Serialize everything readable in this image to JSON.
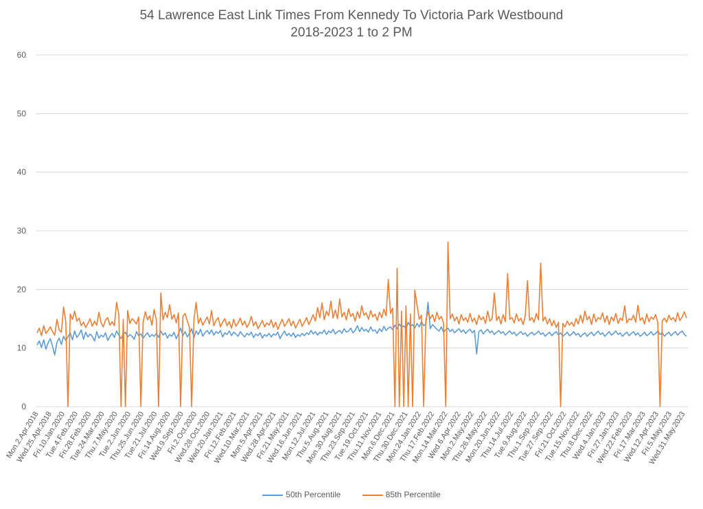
{
  "chart_data": {
    "type": "line",
    "title": "54 Lawrence East Link Times From Kennedy To Victoria Park Westbound",
    "subtitle": "2018-2023 1 to 2 PM",
    "ylim": [
      0,
      60
    ],
    "yticks": [
      0,
      10,
      20,
      30,
      40,
      50,
      60
    ],
    "grid": true,
    "legend_position": "bottom",
    "x_tick_labels": [
      "Mon.2.Apr.2018",
      "Wed.25.Apr.2018",
      "Fri.10.Jan.2020",
      "Tue.4.Feb.2020",
      "Fri.28.Feb.2020",
      "Tue.24.Mar.2020",
      "Thu.7.May.2020",
      "Tue.2.Jun.2020",
      "Thu.25.Jun.2020",
      "Tue.21.Jul.2020",
      "Fri.14.Aug.2020",
      "Wed.9.Sep.2020",
      "Fri.2.Oct.2020",
      "Wed.28.Oct.2020",
      "Wed.20.Jan.2021",
      "Fri.12.Feb.2021",
      "Wed.10.Mar.2021",
      "Mon.5.Apr.2021",
      "Wed.28.Apr.2021",
      "Fri.21.May.2021",
      "Wed.16.Jun.2021",
      "Mon.12.Jul.2021",
      "Thu.5.Aug.2021",
      "Mon.30.Aug.2021",
      "Thu.23.Sep.2021",
      "Tue.19.Oct.2021",
      "Thu.11.Nov.2021",
      "Mon.6.Dec.2021",
      "Thu.30.Dec.2021",
      "Mon.24.Jan.2022",
      "Thu.17.Feb.2022",
      "Mon.14.Mar.2022",
      "Wed.6.Apr.2022",
      "Mon.2.May.2022",
      "Thu.26.May.2022",
      "Mon.20.Jun.2022",
      "Thu.14.Jul.2022",
      "Tue.9.Aug.2022",
      "Thu.1.Sep.2022",
      "Tue.27.Sep.2022",
      "Fri.21.Oct.2022",
      "Tue.15.Nov.2022",
      "Thu.8.Dec.2022",
      "Wed.4.Jan.2023",
      "Fri.27.Jan.2023",
      "Wed.22.Feb.2023",
      "Fri.17.Mar.2023",
      "Wed.12.Apr.2023",
      "Fri.5.May.2023",
      "Wed.31.May.2023"
    ],
    "series": [
      {
        "name": "50th Percentile",
        "color": "#5b9bd5",
        "values": [
          10.5,
          11.2,
          10.1,
          11.4,
          9.8,
          10.9,
          11.6,
          10.3,
          8.8,
          11.0,
          11.7,
          10.6,
          12.0,
          11.3,
          11.9,
          12.6,
          11.4,
          12.9,
          11.8,
          12.3,
          13.1,
          11.5,
          12.7,
          11.9,
          12.4,
          12.0,
          11.2,
          12.8,
          11.7,
          12.2,
          11.9,
          12.6,
          11.3,
          12.0,
          12.5,
          11.8,
          12.9,
          12.2,
          11.6,
          12.4,
          12.7,
          11.9,
          12.3,
          12.0,
          11.5,
          12.8,
          12.1,
          12.4,
          11.7,
          12.2,
          12.6,
          11.9,
          12.3,
          12.0,
          12.5,
          11.8,
          12.9,
          12.2,
          12.6,
          11.7,
          12.3,
          12.0,
          12.7,
          11.6,
          12.4,
          13.4,
          12.1,
          12.8,
          11.9,
          12.5,
          13.3,
          11.8,
          12.9,
          12.3,
          13.2,
          12.0,
          12.6,
          13.0,
          12.4,
          13.1,
          12.2,
          12.8,
          12.5,
          13.0,
          11.9,
          12.6,
          12.3,
          12.9,
          12.1,
          12.7,
          12.4,
          12.0,
          12.8,
          12.3,
          11.9,
          12.5,
          12.2,
          12.7,
          11.8,
          12.4,
          12.1,
          12.6,
          11.7,
          12.3,
          12.0,
          12.5,
          11.9,
          12.4,
          12.2,
          12.7,
          11.6,
          12.3,
          12.9,
          12.1,
          12.5,
          12.0,
          12.6,
          11.8,
          12.3,
          12.0,
          12.5,
          12.1,
          12.6,
          12.3,
          13.0,
          12.4,
          12.8,
          12.2,
          12.7,
          12.5,
          13.1,
          12.3,
          12.9,
          12.6,
          13.2,
          12.4,
          12.8,
          13.0,
          12.5,
          13.3,
          12.7,
          12.9,
          13.4,
          12.6,
          13.0,
          13.8,
          12.8,
          13.5,
          12.9,
          13.2,
          12.7,
          13.6,
          12.9,
          13.1,
          12.5,
          13.3,
          12.8,
          13.7,
          13.0,
          13.4,
          13.6,
          13.1,
          13.9,
          13.3,
          14.1,
          13.5,
          13.8,
          13.2,
          14.4,
          13.7,
          14.0,
          13.4,
          14.2,
          13.6,
          14.5,
          13.8,
          14.1,
          17.8,
          13.3,
          14.0,
          13.6,
          13.2,
          12.9,
          13.6,
          12.7,
          13.1,
          13.4,
          12.8,
          13.2,
          12.6,
          13.0,
          13.3,
          12.7,
          13.1,
          12.5,
          12.9,
          13.2,
          12.6,
          13.0,
          9.0,
          12.8,
          13.1,
          12.4,
          12.9,
          13.2,
          12.6,
          12.9,
          12.3,
          12.7,
          13.0,
          12.5,
          12.8,
          12.2,
          12.6,
          12.9,
          12.4,
          12.7,
          12.1,
          12.5,
          12.8,
          12.3,
          12.6,
          12.0,
          12.4,
          12.7,
          12.2,
          12.5,
          12.9,
          12.3,
          12.6,
          12.0,
          12.4,
          12.7,
          12.1,
          12.5,
          12.8,
          12.2,
          12.6,
          12.0,
          12.3,
          12.7,
          12.1,
          12.4,
          12.8,
          12.2,
          12.5,
          11.9,
          12.3,
          12.6,
          12.0,
          12.4,
          12.7,
          12.1,
          12.5,
          12.9,
          12.3,
          12.6,
          12.0,
          12.4,
          12.8,
          12.2,
          12.5,
          12.9,
          12.3,
          12.6,
          12.0,
          12.4,
          12.7,
          12.1,
          12.5,
          12.8,
          12.2,
          12.6,
          12.0,
          12.3,
          12.7,
          12.1,
          12.4,
          12.8,
          12.2,
          12.5,
          12.9,
          12.3,
          12.6,
          12.0,
          12.4,
          12.7,
          12.1,
          12.5,
          12.8,
          12.2,
          12.6,
          12.9,
          12.3,
          12.0
        ]
      },
      {
        "name": "85th Percentile",
        "color": "#ed7d31",
        "values": [
          12.6,
          13.4,
          12.1,
          13.8,
          12.5,
          13.0,
          13.6,
          12.8,
          12.2,
          14.9,
          13.1,
          12.7,
          17.0,
          14.5,
          0,
          15.8,
          14.9,
          16.3,
          14.6,
          15.1,
          13.8,
          14.4,
          13.5,
          14.2,
          15.0,
          13.7,
          14.6,
          13.9,
          16.1,
          14.3,
          13.6,
          14.8,
          15.2,
          13.9,
          14.5,
          13.8,
          17.8,
          15.7,
          0,
          14.9,
          0,
          16.4,
          14.2,
          15.0,
          14.6,
          14.1,
          15.3,
          0,
          14.4,
          16.2,
          14.8,
          15.5,
          13.9,
          16.6,
          14.7,
          0,
          19.4,
          14.8,
          16.1,
          15.2,
          17.4,
          14.9,
          15.7,
          14.3,
          16.0,
          0,
          15.4,
          15.9,
          14.6,
          13.5,
          0,
          14.9,
          17.8,
          14.2,
          15.1,
          13.9,
          14.6,
          15.3,
          14.1,
          16.4,
          13.8,
          14.7,
          15.2,
          13.6,
          14.4,
          15.0,
          13.8,
          14.5,
          13.4,
          14.9,
          13.7,
          14.3,
          15.1,
          13.9,
          14.6,
          13.5,
          14.2,
          15.4,
          13.8,
          14.5,
          13.3,
          14.0,
          14.7,
          13.6,
          14.3,
          13.9,
          14.8,
          13.5,
          14.4,
          13.2,
          14.1,
          14.9,
          13.7,
          14.3,
          15.0,
          13.8,
          14.6,
          13.4,
          14.2,
          14.9,
          13.7,
          14.4,
          15.2,
          14.0,
          14.8,
          15.7,
          14.6,
          16.9,
          15.2,
          17.7,
          14.8,
          16.3,
          15.5,
          18.0,
          15.1,
          16.5,
          15.0,
          18.4,
          15.3,
          16.1,
          14.8,
          16.7,
          15.4,
          15.9,
          14.6,
          16.2,
          15.1,
          17.2,
          15.6,
          16.0,
          14.9,
          16.4,
          15.3,
          15.8,
          14.7,
          16.1,
          15.2,
          16.6,
          15.5,
          21.7,
          15.9,
          16.8,
          0,
          23.6,
          0,
          16.3,
          0,
          17.2,
          0,
          15.8,
          0,
          19.9,
          17.4,
          14.9,
          15.6,
          0,
          14.8,
          16.2,
          15.0,
          15.7,
          14.5,
          16.1,
          14.9,
          15.4,
          14.2,
          0,
          28.1,
          15.0,
          15.8,
          14.6,
          15.3,
          14.1,
          15.7,
          14.7,
          15.2,
          14.4,
          15.9,
          14.5,
          15.1,
          14.0,
          15.6,
          14.8,
          15.3,
          14.2,
          16.3,
          14.6,
          15.0,
          19.4,
          14.7,
          15.4,
          14.1,
          15.7,
          14.5,
          22.7,
          14.9,
          15.2,
          14.3,
          15.8,
          14.6,
          15.1,
          14.0,
          15.5,
          21.5,
          14.7,
          15.2,
          14.4,
          15.9,
          14.8,
          24.5,
          14.6,
          15.3,
          14.1,
          15.0,
          13.8,
          14.7,
          13.5,
          14.4,
          0,
          14.2,
          13.6,
          14.6,
          13.9,
          14.4,
          13.7,
          15.0,
          14.1,
          15.6,
          14.3,
          16.3,
          14.8,
          15.4,
          14.0,
          15.8,
          14.5,
          15.2,
          14.9,
          16.0,
          14.4,
          15.5,
          14.0,
          15.3,
          14.6,
          15.9,
          14.2,
          15.1,
          14.7,
          17.2,
          14.3,
          15.0,
          14.8,
          15.6,
          14.4,
          17.3,
          14.7,
          15.2,
          14.1,
          15.8,
          14.5,
          15.3,
          14.9,
          15.7,
          14.3,
          0,
          14.6,
          15.1,
          14.4,
          15.6,
          14.8,
          15.2,
          14.5,
          16.0,
          14.7,
          15.3,
          16.2,
          15.1
        ]
      }
    ]
  }
}
